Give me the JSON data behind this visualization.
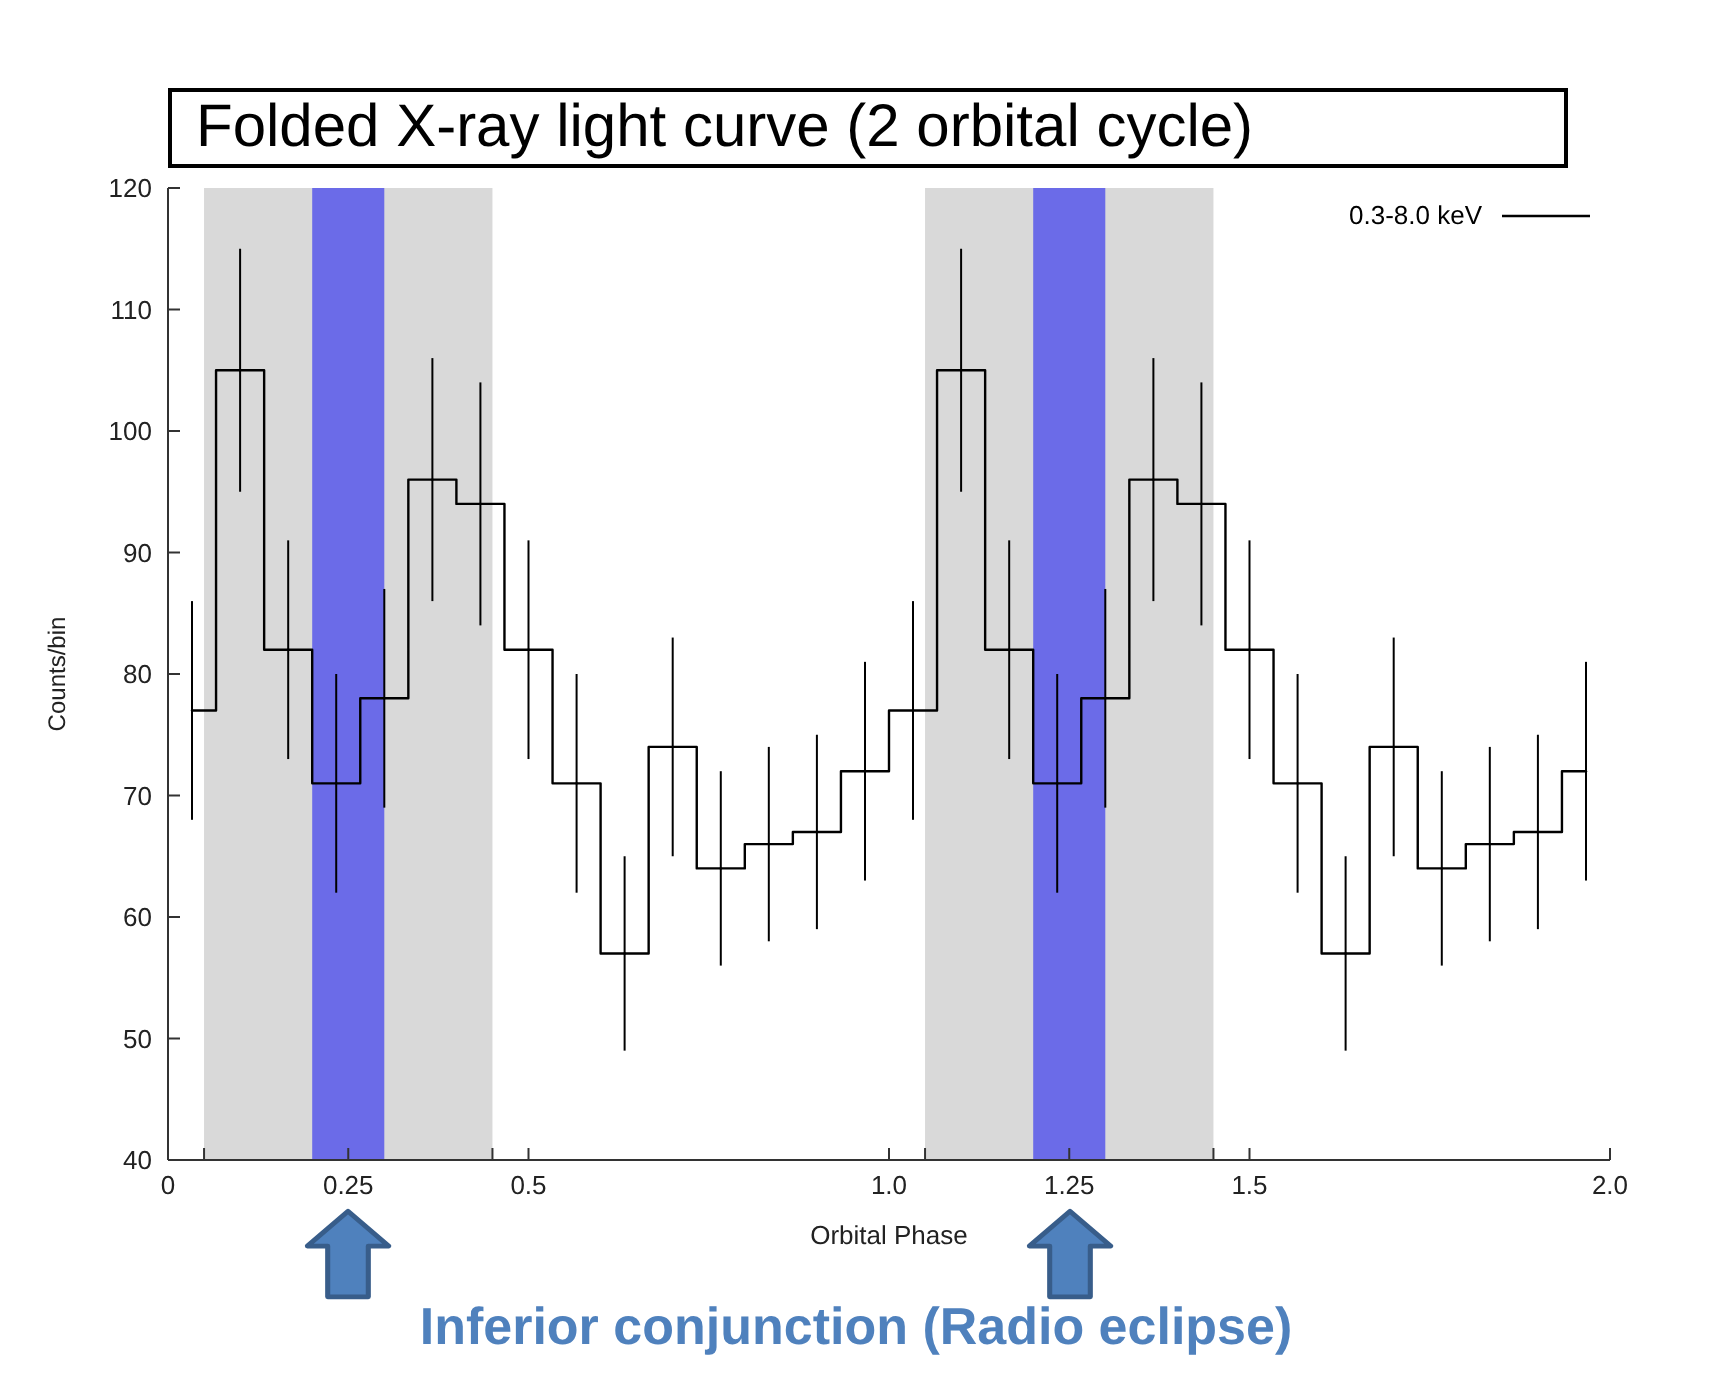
{
  "chart_data": {
    "type": "step",
    "title": "Folded X-ray light curve (2 orbital cycle)",
    "xlabel": "Orbital Phase",
    "ylabel": "Counts/bin",
    "x": [
      0.0333,
      0.1,
      0.1667,
      0.2333,
      0.3,
      0.3667,
      0.4333,
      0.5,
      0.5667,
      0.6333,
      0.7,
      0.7667,
      0.8333,
      0.9,
      0.9667,
      1.0333,
      1.1,
      1.1667,
      1.2333,
      1.3,
      1.3667,
      1.4333,
      1.5,
      1.5667,
      1.6333,
      1.7,
      1.7667,
      1.8333,
      1.9,
      1.9667
    ],
    "series": [
      {
        "name": "0.3-8.0 keV",
        "color": "#000000",
        "values": [
          77,
          105,
          82,
          71,
          78,
          96,
          94,
          82,
          71,
          57,
          74,
          64,
          66,
          67,
          72,
          77,
          105,
          82,
          71,
          78,
          96,
          94,
          82,
          71,
          57,
          74,
          64,
          66,
          67,
          72
        ],
        "errors": [
          9,
          10,
          9,
          9,
          9,
          10,
          10,
          9,
          9,
          8,
          9,
          8,
          8,
          8,
          9,
          9,
          10,
          9,
          9,
          9,
          10,
          10,
          9,
          9,
          8,
          9,
          8,
          8,
          8,
          9
        ]
      }
    ],
    "xlim": [
      0,
      2
    ],
    "xticks": [
      0,
      {
        "value": 0.05,
        "label": null
      },
      0.25,
      {
        "value": 0.45,
        "label": null
      },
      0.5,
      {
        "value": 1,
        "label": "1.0"
      },
      {
        "value": 1.05,
        "label": null
      },
      1.25,
      {
        "value": 1.45,
        "label": null
      },
      1.5,
      {
        "value": 2,
        "label": "2.0"
      }
    ],
    "ylim": [
      40,
      120
    ],
    "yticks": [
      40,
      50,
      60,
      70,
      80,
      90,
      100,
      110,
      120
    ],
    "bands": [
      {
        "axis": "x",
        "from": 0.05,
        "to": 0.45,
        "color": "#d9d9d9"
      },
      {
        "axis": "x",
        "from": 1.05,
        "to": 1.45,
        "color": "#d9d9d9"
      },
      {
        "axis": "x",
        "from": 0.2,
        "to": 0.3,
        "color": "#6b6be8"
      },
      {
        "axis": "x",
        "from": 1.2,
        "to": 1.3,
        "color": "#6b6be8"
      }
    ],
    "annotations": [
      "Inferior conjunction (Radio eclipse)"
    ],
    "legend": "top right"
  }
}
